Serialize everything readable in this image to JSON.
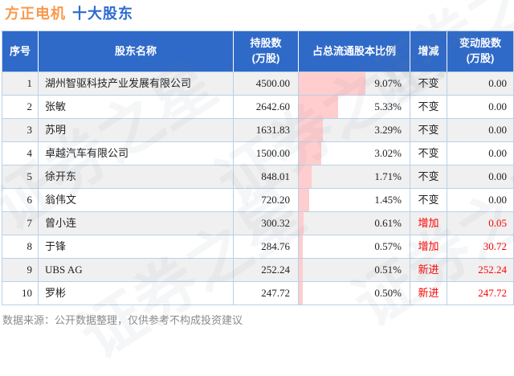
{
  "title": {
    "stock": "方正电机",
    "suffix": "十大股东"
  },
  "colors": {
    "title_orange": "#f9994e",
    "title_blue": "#2e6bd0",
    "header_bg": "#2f6ac9",
    "header_text": "#ffffff",
    "border": "#b9d0e9",
    "alt_row_bg": "#f0f0f0",
    "bar_pink": "#ffcdcd",
    "highlight_red": "#fe0000",
    "footer_gray": "#8b8b8b"
  },
  "watermark": {
    "text": "证券之星"
  },
  "footer": {
    "text": "数据来源：公开数据整理，仅供参考不构成投资建议"
  },
  "chart_data": {
    "type": "table",
    "title": "方正电机 十大股东",
    "bar_column": "占总流通股本比例",
    "bar_scale_max_percent": 15,
    "columns": [
      {
        "key": "no",
        "label": "序号",
        "name": "rank"
      },
      {
        "key": "name",
        "label": "股东名称",
        "name": "shareholder-name"
      },
      {
        "key": "shares",
        "label": "持股数\n(万股)",
        "name": "shares-held"
      },
      {
        "key": "pct",
        "label": "占总流通股本比例",
        "name": "percent-of-float"
      },
      {
        "key": "change",
        "label": "增减",
        "name": "change-direction"
      },
      {
        "key": "delta",
        "label": "变动股数\n(万股)",
        "name": "change-shares"
      }
    ],
    "rows": [
      {
        "no": "1",
        "name": "湖州智驱科技产业发展有限公司",
        "shares": "4500.00",
        "pct": "9.07%",
        "pct_value": 9.07,
        "change": "不变",
        "delta": "0.00",
        "red": false
      },
      {
        "no": "2",
        "name": "张敏",
        "shares": "2642.60",
        "pct": "5.33%",
        "pct_value": 5.33,
        "change": "不变",
        "delta": "0.00",
        "red": false
      },
      {
        "no": "3",
        "name": "苏明",
        "shares": "1631.83",
        "pct": "3.29%",
        "pct_value": 3.29,
        "change": "不变",
        "delta": "0.00",
        "red": false
      },
      {
        "no": "4",
        "name": "卓越汽车有限公司",
        "shares": "1500.00",
        "pct": "3.02%",
        "pct_value": 3.02,
        "change": "不变",
        "delta": "0.00",
        "red": false
      },
      {
        "no": "5",
        "name": "徐开东",
        "shares": "848.01",
        "pct": "1.71%",
        "pct_value": 1.71,
        "change": "不变",
        "delta": "0.00",
        "red": false
      },
      {
        "no": "6",
        "name": "翁伟文",
        "shares": "720.20",
        "pct": "1.45%",
        "pct_value": 1.45,
        "change": "不变",
        "delta": "0.00",
        "red": false
      },
      {
        "no": "7",
        "name": "曾小连",
        "shares": "300.32",
        "pct": "0.61%",
        "pct_value": 0.61,
        "change": "增加",
        "delta": "0.05",
        "red": true
      },
      {
        "no": "8",
        "name": "于锋",
        "shares": "284.76",
        "pct": "0.57%",
        "pct_value": 0.57,
        "change": "增加",
        "delta": "30.72",
        "red": true
      },
      {
        "no": "9",
        "name": "UBS AG",
        "shares": "252.24",
        "pct": "0.51%",
        "pct_value": 0.51,
        "change": "新进",
        "delta": "252.24",
        "red": true
      },
      {
        "no": "10",
        "name": "罗彬",
        "shares": "247.72",
        "pct": "0.50%",
        "pct_value": 0.5,
        "change": "新进",
        "delta": "247.72",
        "red": true
      }
    ]
  }
}
